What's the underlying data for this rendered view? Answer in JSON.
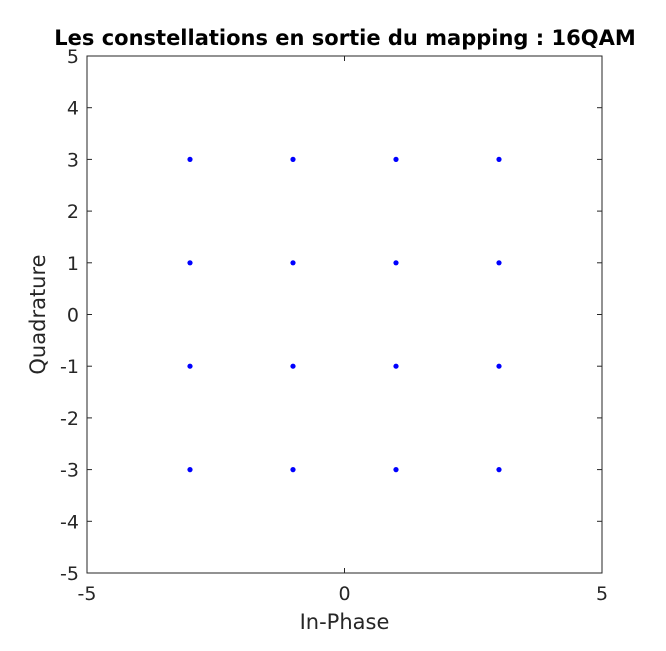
{
  "chart_data": {
    "type": "scatter",
    "title": "Les constellations en sortie du mapping : 16QAM",
    "xlabel": "In-Phase",
    "ylabel": "Quadrature",
    "xlim": [
      -5,
      5
    ],
    "ylim": [
      -5,
      5
    ],
    "xticks": [
      "-5",
      "0",
      "5"
    ],
    "yticks": [
      "5",
      "4",
      "3",
      "2",
      "1",
      "0",
      "-1",
      "-2",
      "-3",
      "-4",
      "-5"
    ],
    "grid": false,
    "box": true,
    "marker_color": "#0000ff",
    "series": [
      {
        "points": [
          [
            -3,
            3
          ],
          [
            -1,
            3
          ],
          [
            1,
            3
          ],
          [
            3,
            3
          ],
          [
            -3,
            1
          ],
          [
            -1,
            1
          ],
          [
            1,
            1
          ],
          [
            3,
            1
          ],
          [
            -3,
            -1
          ],
          [
            -1,
            -1
          ],
          [
            1,
            -1
          ],
          [
            3,
            -1
          ],
          [
            -3,
            -3
          ],
          [
            -1,
            -3
          ],
          [
            1,
            -3
          ],
          [
            3,
            -3
          ]
        ]
      }
    ]
  }
}
